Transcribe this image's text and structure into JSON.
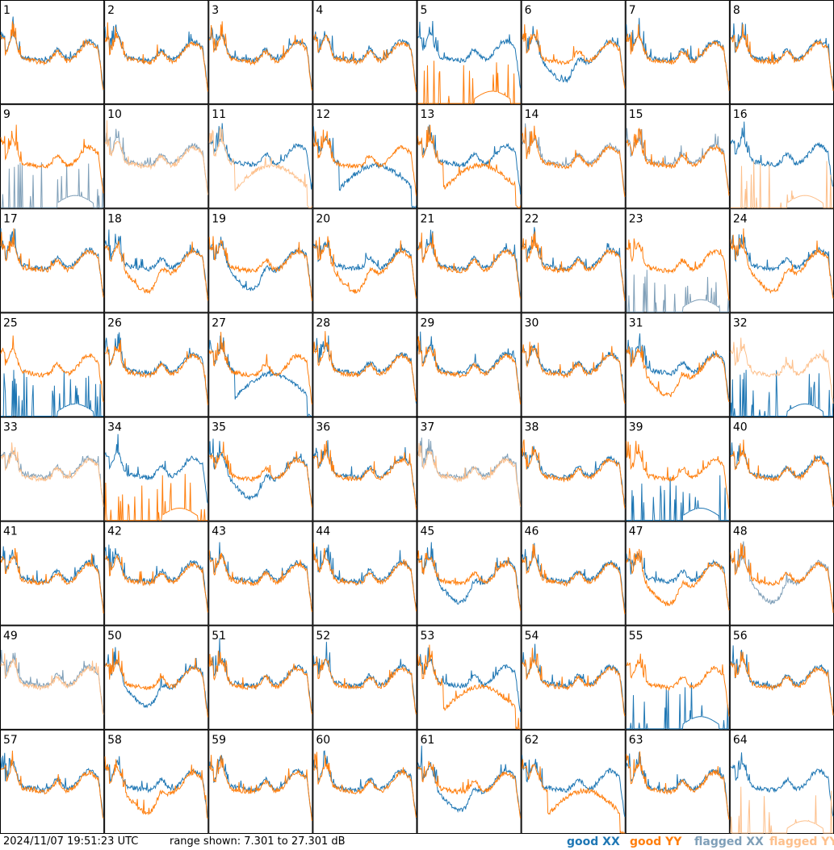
{
  "timestamp": "2024/11/07 19:51:23 UTC",
  "range_text": "range shown: 7.301 to 27.301 dB",
  "legend": {
    "good_xx": "good XX",
    "good_yy": "good YY",
    "flagged_xx": "flagged XX",
    "flagged_yy": "flagged YY"
  },
  "colors": {
    "good_xx": "#1f77b4",
    "good_yy": "#ff7f0e",
    "flagged_xx": "#7f9fb8",
    "flagged_yy": "#fdc08c",
    "grid_line": "#000000"
  },
  "chart_data": {
    "type": "line",
    "layout": "8x8 small multiples",
    "ylim": [
      7.301,
      27.301
    ],
    "yunit": "dB",
    "panels": [
      {
        "id": "1",
        "xx": "good",
        "yy": "good",
        "xx_shape": "normal",
        "yy_shape": "normal"
      },
      {
        "id": "2",
        "xx": "good",
        "yy": "good",
        "xx_shape": "normal",
        "yy_shape": "normal"
      },
      {
        "id": "3",
        "xx": "good",
        "yy": "good",
        "xx_shape": "normal",
        "yy_shape": "normal"
      },
      {
        "id": "4",
        "xx": "good",
        "yy": "good",
        "xx_shape": "normal",
        "yy_shape": "normal"
      },
      {
        "id": "5",
        "xx": "good",
        "yy": "good",
        "xx_shape": "normal",
        "yy_shape": "spikes"
      },
      {
        "id": "6",
        "xx": "good",
        "yy": "good",
        "xx_shape": "dip",
        "yy_shape": "normal"
      },
      {
        "id": "7",
        "xx": "good",
        "yy": "good",
        "xx_shape": "normal",
        "yy_shape": "normal"
      },
      {
        "id": "8",
        "xx": "good",
        "yy": "good",
        "xx_shape": "normal",
        "yy_shape": "normal"
      },
      {
        "id": "9",
        "xx": "flagged",
        "yy": "good",
        "xx_shape": "spikes",
        "yy_shape": "normal"
      },
      {
        "id": "10",
        "xx": "flagged",
        "yy": "flagged",
        "xx_shape": "normal",
        "yy_shape": "normal"
      },
      {
        "id": "11",
        "xx": "good",
        "yy": "flagged",
        "xx_shape": "normal",
        "yy_shape": "lowhump"
      },
      {
        "id": "12",
        "xx": "good",
        "yy": "good",
        "xx_shape": "lowhump",
        "yy_shape": "normal"
      },
      {
        "id": "13",
        "xx": "good",
        "yy": "good",
        "xx_shape": "normal",
        "yy_shape": "lowhump"
      },
      {
        "id": "14",
        "xx": "flagged",
        "yy": "good",
        "xx_shape": "normal",
        "yy_shape": "normal"
      },
      {
        "id": "15",
        "xx": "flagged",
        "yy": "good",
        "xx_shape": "normal",
        "yy_shape": "normal"
      },
      {
        "id": "16",
        "xx": "good",
        "yy": "flagged",
        "xx_shape": "normal",
        "yy_shape": "spikes"
      },
      {
        "id": "17",
        "xx": "good",
        "yy": "good",
        "xx_shape": "normal",
        "yy_shape": "normal"
      },
      {
        "id": "18",
        "xx": "good",
        "yy": "good",
        "xx_shape": "normal",
        "yy_shape": "dip"
      },
      {
        "id": "19",
        "xx": "good",
        "yy": "good",
        "xx_shape": "dip",
        "yy_shape": "normal"
      },
      {
        "id": "20",
        "xx": "good",
        "yy": "good",
        "xx_shape": "normal",
        "yy_shape": "dip"
      },
      {
        "id": "21",
        "xx": "good",
        "yy": "good",
        "xx_shape": "normal",
        "yy_shape": "normal"
      },
      {
        "id": "22",
        "xx": "good",
        "yy": "good",
        "xx_shape": "normal",
        "yy_shape": "normal"
      },
      {
        "id": "23",
        "xx": "flagged",
        "yy": "good",
        "xx_shape": "spikes",
        "yy_shape": "normal"
      },
      {
        "id": "24",
        "xx": "good",
        "yy": "good",
        "xx_shape": "normal",
        "yy_shape": "dip"
      },
      {
        "id": "25",
        "xx": "good",
        "yy": "good",
        "xx_shape": "spikes",
        "yy_shape": "normal"
      },
      {
        "id": "26",
        "xx": "good",
        "yy": "good",
        "xx_shape": "normal",
        "yy_shape": "normal"
      },
      {
        "id": "27",
        "xx": "good",
        "yy": "good",
        "xx_shape": "lowhump",
        "yy_shape": "normal"
      },
      {
        "id": "28",
        "xx": "good",
        "yy": "good",
        "xx_shape": "normal",
        "yy_shape": "normal"
      },
      {
        "id": "29",
        "xx": "good",
        "yy": "good",
        "xx_shape": "normal",
        "yy_shape": "normal"
      },
      {
        "id": "30",
        "xx": "good",
        "yy": "good",
        "xx_shape": "normal",
        "yy_shape": "normal"
      },
      {
        "id": "31",
        "xx": "good",
        "yy": "good",
        "xx_shape": "normal",
        "yy_shape": "dip"
      },
      {
        "id": "32",
        "xx": "good",
        "yy": "flagged",
        "xx_shape": "spikes",
        "yy_shape": "normal"
      },
      {
        "id": "33",
        "xx": "flagged",
        "yy": "flagged",
        "xx_shape": "normal",
        "yy_shape": "normal"
      },
      {
        "id": "34",
        "xx": "good",
        "yy": "good",
        "xx_shape": "normal",
        "yy_shape": "spikes"
      },
      {
        "id": "35",
        "xx": "good",
        "yy": "good",
        "xx_shape": "dip",
        "yy_shape": "normal"
      },
      {
        "id": "36",
        "xx": "good",
        "yy": "good",
        "xx_shape": "normal",
        "yy_shape": "normal"
      },
      {
        "id": "37",
        "xx": "flagged",
        "yy": "flagged",
        "xx_shape": "normal",
        "yy_shape": "normal"
      },
      {
        "id": "38",
        "xx": "good",
        "yy": "good",
        "xx_shape": "normal",
        "yy_shape": "normal"
      },
      {
        "id": "39",
        "xx": "good",
        "yy": "good",
        "xx_shape": "spikes",
        "yy_shape": "normal"
      },
      {
        "id": "40",
        "xx": "good",
        "yy": "good",
        "xx_shape": "normal",
        "yy_shape": "normal"
      },
      {
        "id": "41",
        "xx": "good",
        "yy": "good",
        "xx_shape": "normal",
        "yy_shape": "normal"
      },
      {
        "id": "42",
        "xx": "good",
        "yy": "good",
        "xx_shape": "normal",
        "yy_shape": "normal"
      },
      {
        "id": "43",
        "xx": "good",
        "yy": "good",
        "xx_shape": "normal",
        "yy_shape": "normal"
      },
      {
        "id": "44",
        "xx": "good",
        "yy": "good",
        "xx_shape": "normal",
        "yy_shape": "normal"
      },
      {
        "id": "45",
        "xx": "good",
        "yy": "good",
        "xx_shape": "dip",
        "yy_shape": "normal"
      },
      {
        "id": "46",
        "xx": "good",
        "yy": "good",
        "xx_shape": "normal",
        "yy_shape": "normal"
      },
      {
        "id": "47",
        "xx": "good",
        "yy": "good",
        "xx_shape": "normal",
        "yy_shape": "dip"
      },
      {
        "id": "48",
        "xx": "flagged",
        "yy": "good",
        "xx_shape": "dip",
        "yy_shape": "normal"
      },
      {
        "id": "49",
        "xx": "flagged",
        "yy": "flagged",
        "xx_shape": "normal",
        "yy_shape": "normal"
      },
      {
        "id": "50",
        "xx": "good",
        "yy": "good",
        "xx_shape": "dip",
        "yy_shape": "normal"
      },
      {
        "id": "51",
        "xx": "good",
        "yy": "good",
        "xx_shape": "normal",
        "yy_shape": "normal"
      },
      {
        "id": "52",
        "xx": "good",
        "yy": "good",
        "xx_shape": "normal",
        "yy_shape": "normal"
      },
      {
        "id": "53",
        "xx": "good",
        "yy": "good",
        "xx_shape": "normal",
        "yy_shape": "lowhump"
      },
      {
        "id": "54",
        "xx": "good",
        "yy": "good",
        "xx_shape": "normal",
        "yy_shape": "normal"
      },
      {
        "id": "55",
        "xx": "good",
        "yy": "good",
        "xx_shape": "spikes",
        "yy_shape": "normal"
      },
      {
        "id": "56",
        "xx": "good",
        "yy": "good",
        "xx_shape": "normal",
        "yy_shape": "normal"
      },
      {
        "id": "57",
        "xx": "good",
        "yy": "good",
        "xx_shape": "normal",
        "yy_shape": "normal"
      },
      {
        "id": "58",
        "xx": "good",
        "yy": "good",
        "xx_shape": "normal",
        "yy_shape": "dip"
      },
      {
        "id": "59",
        "xx": "good",
        "yy": "good",
        "xx_shape": "normal",
        "yy_shape": "normal"
      },
      {
        "id": "60",
        "xx": "good",
        "yy": "good",
        "xx_shape": "normal",
        "yy_shape": "normal"
      },
      {
        "id": "61",
        "xx": "good",
        "yy": "good",
        "xx_shape": "dip",
        "yy_shape": "normal"
      },
      {
        "id": "62",
        "xx": "good",
        "yy": "good",
        "xx_shape": "normal",
        "yy_shape": "lowhump"
      },
      {
        "id": "63",
        "xx": "good",
        "yy": "good",
        "xx_shape": "normal",
        "yy_shape": "normal"
      },
      {
        "id": "64",
        "xx": "good",
        "yy": "flagged",
        "xx_shape": "normal",
        "yy_shape": "spikes"
      }
    ]
  }
}
